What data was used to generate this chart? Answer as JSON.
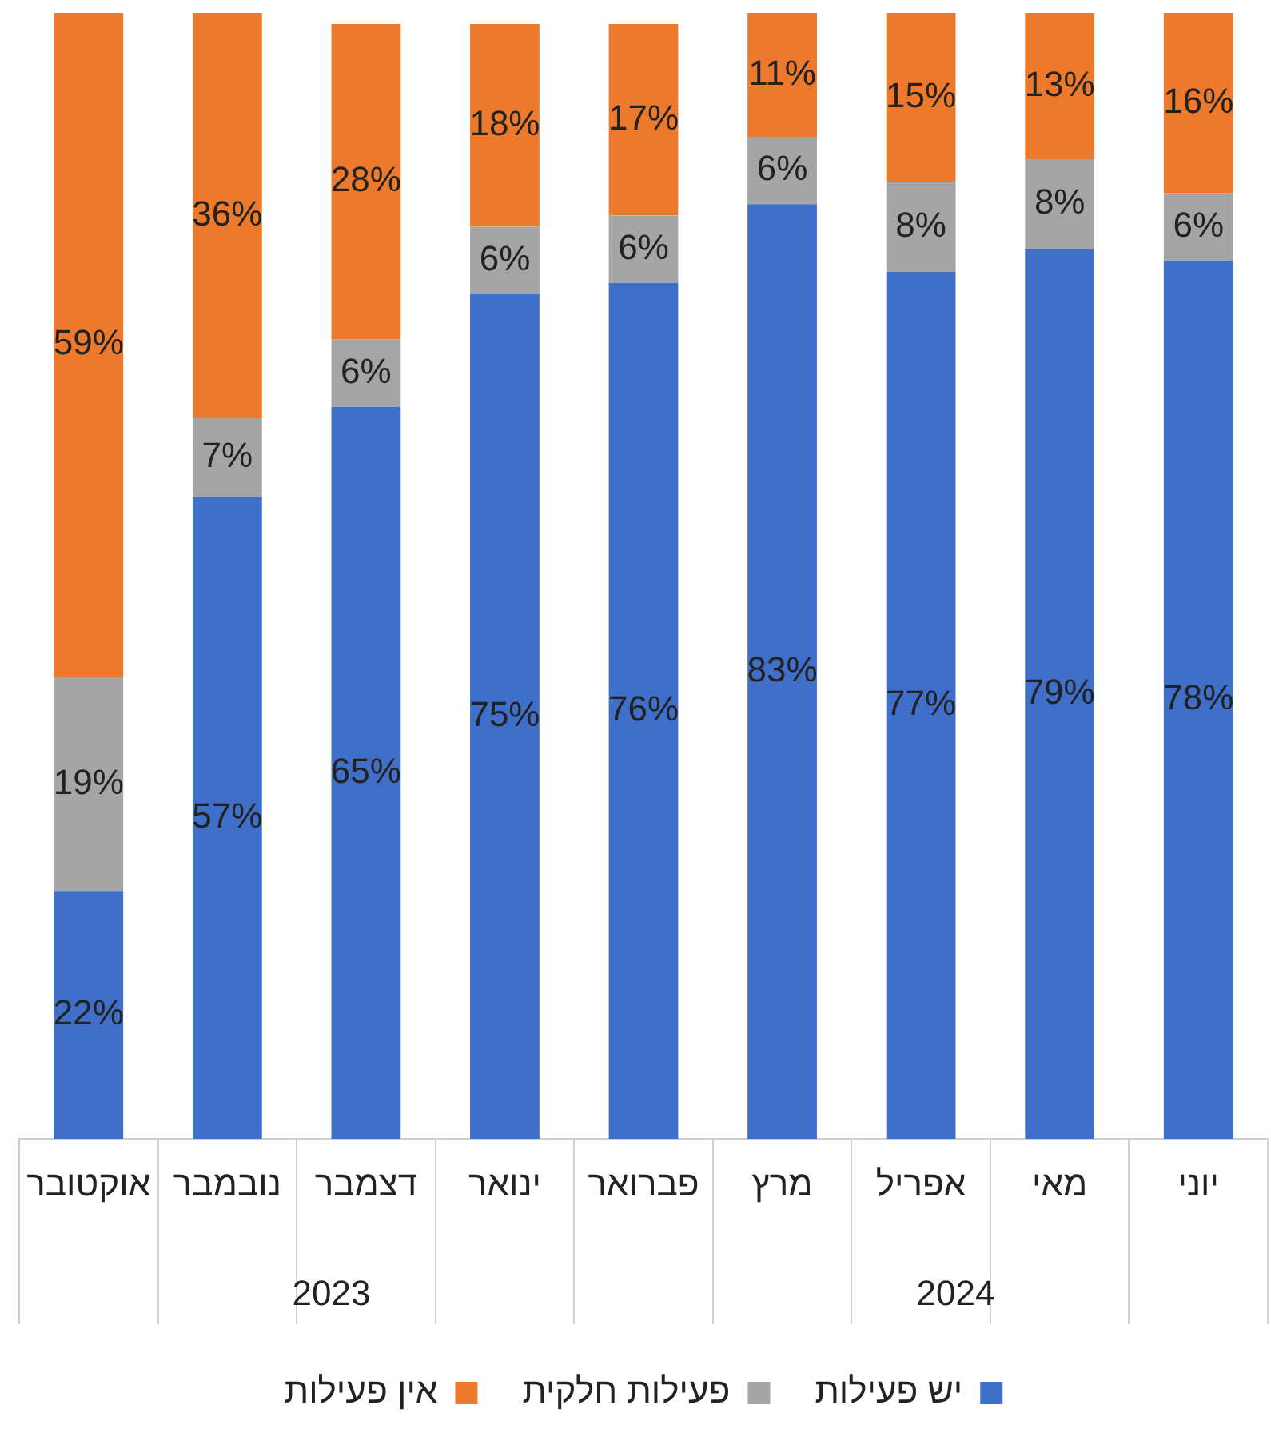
{
  "chart_data": {
    "type": "bar",
    "stacked": true,
    "categories": [
      "אוקטובר",
      "נובמבר",
      "דצמבר",
      "ינואר",
      "פברואר",
      "מרץ",
      "אפריל",
      "מאי",
      "יוני"
    ],
    "ylim": [
      0,
      100
    ],
    "tick_labels": "x",
    "grid": false,
    "legend": "bottom",
    "series": [
      {
        "name": "יש פעילות",
        "color": "#3f6fc8",
        "values": [
          22,
          57,
          65,
          75,
          76,
          83,
          77,
          79,
          78
        ],
        "value_labels": [
          "22%",
          "57%",
          "65%",
          "75%",
          "76%",
          "83%",
          "77%",
          "79%",
          "78%"
        ]
      },
      {
        "name": "פעילות חלקית",
        "color": "#a5a5a5",
        "values": [
          19,
          7,
          6,
          6,
          6,
          6,
          8,
          8,
          6
        ],
        "value_labels": [
          "19%",
          "7%",
          "6%",
          "6%",
          "6%",
          "6%",
          "8%",
          "8%",
          "6%"
        ]
      },
      {
        "name": "אין פעילות",
        "color": "#ed7a2c",
        "values": [
          59,
          36,
          28,
          18,
          17,
          11,
          15,
          13,
          16
        ],
        "value_labels": [
          "59%",
          "36%",
          "28%",
          "18%",
          "17%",
          "11%",
          "15%",
          "13%",
          "16%"
        ]
      }
    ],
    "annotations": [
      "2023",
      "2024"
    ]
  }
}
